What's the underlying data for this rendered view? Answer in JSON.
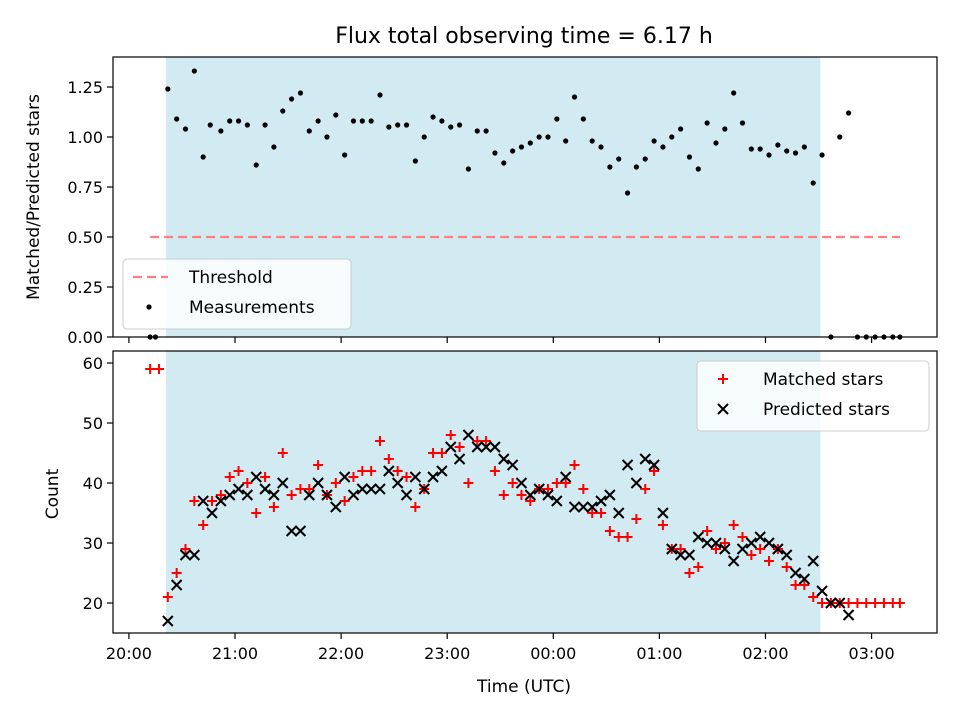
{
  "chart_data": [
    {
      "type": "scatter",
      "title": "Flux total observing time = 6.17 h",
      "xlabel": "",
      "ylabel": "Matched/Predicted stars",
      "ylim": [
        0,
        1.4
      ],
      "yticks": [
        "0.00",
        "0.25",
        "0.50",
        "0.75",
        "1.00",
        "1.25"
      ],
      "xlim": [
        "19:51",
        "03:37"
      ],
      "observing_window": [
        "20:21",
        "02:31"
      ],
      "observing_window_color": "#add8e6",
      "legend_position": "lower-left",
      "series": [
        {
          "name": "Threshold",
          "style": "dashed-line",
          "color": "#ff7f7f",
          "points": [
            [
              "20:12",
              0.5
            ],
            [
              "03:16",
              0.5
            ]
          ]
        },
        {
          "name": "Measurements",
          "style": "dot",
          "color": "#000000",
          "points": [
            [
              "20:12",
              0.0
            ],
            [
              "20:15",
              0.0
            ],
            [
              "20:22",
              1.24
            ],
            [
              "20:27",
              1.09
            ],
            [
              "20:32",
              1.04
            ],
            [
              "20:37",
              1.33
            ],
            [
              "20:42",
              0.9
            ],
            [
              "20:46",
              1.06
            ],
            [
              "20:52",
              1.03
            ],
            [
              "20:57",
              1.08
            ],
            [
              "21:02",
              1.08
            ],
            [
              "21:07",
              1.06
            ],
            [
              "21:12",
              0.86
            ],
            [
              "21:17",
              1.06
            ],
            [
              "21:22",
              0.95
            ],
            [
              "21:27",
              1.13
            ],
            [
              "21:32",
              1.19
            ],
            [
              "21:37",
              1.22
            ],
            [
              "21:42",
              1.03
            ],
            [
              "21:47",
              1.08
            ],
            [
              "21:52",
              1.0
            ],
            [
              "21:57",
              1.11
            ],
            [
              "22:02",
              0.91
            ],
            [
              "22:07",
              1.08
            ],
            [
              "22:12",
              1.08
            ],
            [
              "22:17",
              1.08
            ],
            [
              "22:22",
              1.21
            ],
            [
              "22:27",
              1.05
            ],
            [
              "22:32",
              1.06
            ],
            [
              "22:37",
              1.06
            ],
            [
              "22:42",
              0.88
            ],
            [
              "22:47",
              1.0
            ],
            [
              "22:52",
              1.1
            ],
            [
              "22:57",
              1.08
            ],
            [
              "23:02",
              1.05
            ],
            [
              "23:07",
              1.06
            ],
            [
              "23:12",
              0.84
            ],
            [
              "23:17",
              1.03
            ],
            [
              "23:22",
              1.03
            ],
            [
              "23:27",
              0.92
            ],
            [
              "23:32",
              0.87
            ],
            [
              "23:37",
              0.93
            ],
            [
              "23:42",
              0.95
            ],
            [
              "23:47",
              0.97
            ],
            [
              "23:52",
              1.0
            ],
            [
              "23:57",
              1.0
            ],
            [
              "00:02",
              1.09
            ],
            [
              "00:07",
              0.98
            ],
            [
              "00:12",
              1.2
            ],
            [
              "00:17",
              1.09
            ],
            [
              "00:22",
              0.98
            ],
            [
              "00:27",
              0.95
            ],
            [
              "00:32",
              0.85
            ],
            [
              "00:37",
              0.89
            ],
            [
              "00:42",
              0.72
            ],
            [
              "00:47",
              0.85
            ],
            [
              "00:52",
              0.89
            ],
            [
              "00:57",
              0.98
            ],
            [
              "01:02",
              0.95
            ],
            [
              "01:07",
              1.0
            ],
            [
              "01:12",
              1.04
            ],
            [
              "01:17",
              0.9
            ],
            [
              "01:22",
              0.84
            ],
            [
              "01:27",
              1.07
            ],
            [
              "01:32",
              0.97
            ],
            [
              "01:37",
              1.04
            ],
            [
              "01:42",
              1.22
            ],
            [
              "01:47",
              1.07
            ],
            [
              "01:52",
              0.94
            ],
            [
              "01:57",
              0.94
            ],
            [
              "02:02",
              0.91
            ],
            [
              "02:07",
              0.96
            ],
            [
              "02:12",
              0.93
            ],
            [
              "02:17",
              0.92
            ],
            [
              "02:22",
              0.95
            ],
            [
              "02:27",
              0.77
            ],
            [
              "02:32",
              0.91
            ],
            [
              "02:37",
              0.0
            ],
            [
              "02:42",
              1.0
            ],
            [
              "02:47",
              1.12
            ],
            [
              "02:52",
              0.0
            ],
            [
              "02:57",
              0.0
            ],
            [
              "03:02",
              0.0
            ],
            [
              "03:07",
              0.0
            ],
            [
              "03:12",
              0.0
            ],
            [
              "03:16",
              0.0
            ]
          ]
        }
      ]
    },
    {
      "type": "scatter",
      "title": "",
      "xlabel": "Time (UTC)",
      "ylabel": "Count",
      "ylim": [
        15,
        62
      ],
      "yticks": [
        "20",
        "30",
        "40",
        "50",
        "60"
      ],
      "xlim": [
        "19:51",
        "03:37"
      ],
      "xticks": [
        "20:00",
        "21:00",
        "22:00",
        "23:00",
        "00:00",
        "01:00",
        "02:00",
        "03:00"
      ],
      "observing_window": [
        "20:21",
        "02:31"
      ],
      "observing_window_color": "#add8e6",
      "legend_position": "upper-right",
      "series": [
        {
          "name": "Matched stars",
          "style": "plus",
          "color": "#ff0000",
          "points": [
            [
              "20:12",
              59
            ],
            [
              "20:17",
              59
            ],
            [
              "20:22",
              21
            ],
            [
              "20:27",
              25
            ],
            [
              "20:32",
              29
            ],
            [
              "20:37",
              37
            ],
            [
              "20:42",
              33
            ],
            [
              "20:47",
              37
            ],
            [
              "20:52",
              38
            ],
            [
              "20:57",
              41
            ],
            [
              "21:02",
              42
            ],
            [
              "21:07",
              40
            ],
            [
              "21:12",
              35
            ],
            [
              "21:17",
              41
            ],
            [
              "21:22",
              36
            ],
            [
              "21:27",
              45
            ],
            [
              "21:32",
              38
            ],
            [
              "21:37",
              39
            ],
            [
              "21:42",
              39
            ],
            [
              "21:47",
              43
            ],
            [
              "21:52",
              38
            ],
            [
              "21:57",
              40
            ],
            [
              "22:02",
              37
            ],
            [
              "22:07",
              41
            ],
            [
              "22:12",
              42
            ],
            [
              "22:17",
              42
            ],
            [
              "22:22",
              47
            ],
            [
              "22:27",
              44
            ],
            [
              "22:32",
              42
            ],
            [
              "22:37",
              41
            ],
            [
              "22:42",
              36
            ],
            [
              "22:47",
              39
            ],
            [
              "22:52",
              45
            ],
            [
              "22:57",
              45
            ],
            [
              "23:02",
              48
            ],
            [
              "23:07",
              46
            ],
            [
              "23:12",
              40
            ],
            [
              "23:17",
              47
            ],
            [
              "23:22",
              47
            ],
            [
              "23:27",
              42
            ],
            [
              "23:32",
              38
            ],
            [
              "23:37",
              40
            ],
            [
              "23:42",
              38
            ],
            [
              "23:47",
              37
            ],
            [
              "23:52",
              39
            ],
            [
              "23:57",
              39
            ],
            [
              "00:02",
              40
            ],
            [
              "00:07",
              40
            ],
            [
              "00:12",
              43
            ],
            [
              "00:17",
              39
            ],
            [
              "00:22",
              35
            ],
            [
              "00:27",
              35
            ],
            [
              "00:32",
              32
            ],
            [
              "00:37",
              31
            ],
            [
              "00:42",
              31
            ],
            [
              "00:47",
              34
            ],
            [
              "00:52",
              39
            ],
            [
              "00:57",
              42
            ],
            [
              "01:02",
              33
            ],
            [
              "01:07",
              29
            ],
            [
              "01:12",
              29
            ],
            [
              "01:17",
              25
            ],
            [
              "01:22",
              26
            ],
            [
              "01:27",
              32
            ],
            [
              "01:32",
              29
            ],
            [
              "01:37",
              30
            ],
            [
              "01:42",
              33
            ],
            [
              "01:47",
              31
            ],
            [
              "01:52",
              28
            ],
            [
              "01:57",
              29
            ],
            [
              "02:02",
              27
            ],
            [
              "02:07",
              29
            ],
            [
              "02:12",
              26
            ],
            [
              "02:17",
              23
            ],
            [
              "02:22",
              23
            ],
            [
              "02:27",
              21
            ],
            [
              "02:32",
              20
            ],
            [
              "02:37",
              20
            ],
            [
              "02:42",
              20
            ],
            [
              "02:47",
              20
            ],
            [
              "02:52",
              20
            ],
            [
              "02:57",
              20
            ],
            [
              "03:02",
              20
            ],
            [
              "03:07",
              20
            ],
            [
              "03:12",
              20
            ],
            [
              "03:16",
              20
            ]
          ]
        },
        {
          "name": "Predicted stars",
          "style": "x",
          "color": "#000000",
          "points": [
            [
              "20:22",
              17
            ],
            [
              "20:27",
              23
            ],
            [
              "20:32",
              28
            ],
            [
              "20:37",
              28
            ],
            [
              "20:42",
              37
            ],
            [
              "20:47",
              35
            ],
            [
              "20:52",
              37
            ],
            [
              "20:57",
              38
            ],
            [
              "21:02",
              39
            ],
            [
              "21:07",
              38
            ],
            [
              "21:12",
              41
            ],
            [
              "21:17",
              39
            ],
            [
              "21:22",
              38
            ],
            [
              "21:27",
              40
            ],
            [
              "21:32",
              32
            ],
            [
              "21:37",
              32
            ],
            [
              "21:42",
              38
            ],
            [
              "21:47",
              40
            ],
            [
              "21:52",
              38
            ],
            [
              "21:57",
              36
            ],
            [
              "22:02",
              41
            ],
            [
              "22:07",
              38
            ],
            [
              "22:12",
              39
            ],
            [
              "22:17",
              39
            ],
            [
              "22:22",
              39
            ],
            [
              "22:27",
              42
            ],
            [
              "22:32",
              40
            ],
            [
              "22:37",
              38
            ],
            [
              "22:42",
              41
            ],
            [
              "22:47",
              39
            ],
            [
              "22:52",
              41
            ],
            [
              "22:57",
              42
            ],
            [
              "23:02",
              46
            ],
            [
              "23:07",
              44
            ],
            [
              "23:12",
              48
            ],
            [
              "23:17",
              46
            ],
            [
              "23:22",
              46
            ],
            [
              "23:27",
              46
            ],
            [
              "23:32",
              44
            ],
            [
              "23:37",
              43
            ],
            [
              "23:42",
              40
            ],
            [
              "23:47",
              38
            ],
            [
              "23:52",
              39
            ],
            [
              "23:57",
              38
            ],
            [
              "00:02",
              37
            ],
            [
              "00:07",
              41
            ],
            [
              "00:12",
              36
            ],
            [
              "00:17",
              36
            ],
            [
              "00:22",
              36
            ],
            [
              "00:27",
              37
            ],
            [
              "00:32",
              38
            ],
            [
              "00:37",
              35
            ],
            [
              "00:42",
              43
            ],
            [
              "00:47",
              40
            ],
            [
              "00:52",
              44
            ],
            [
              "00:57",
              43
            ],
            [
              "01:02",
              35
            ],
            [
              "01:07",
              29
            ],
            [
              "01:12",
              28
            ],
            [
              "01:17",
              28
            ],
            [
              "01:22",
              31
            ],
            [
              "01:27",
              30
            ],
            [
              "01:32",
              30
            ],
            [
              "01:37",
              29
            ],
            [
              "01:42",
              27
            ],
            [
              "01:47",
              29
            ],
            [
              "01:52",
              30
            ],
            [
              "01:57",
              31
            ],
            [
              "02:02",
              30
            ],
            [
              "02:07",
              29
            ],
            [
              "02:12",
              28
            ],
            [
              "02:17",
              25
            ],
            [
              "02:22",
              24
            ],
            [
              "02:27",
              27
            ],
            [
              "02:32",
              22
            ],
            [
              "02:37",
              20
            ],
            [
              "02:42",
              20
            ],
            [
              "02:47",
              18
            ]
          ]
        }
      ]
    }
  ]
}
